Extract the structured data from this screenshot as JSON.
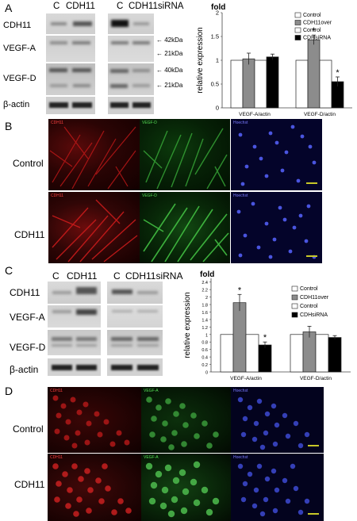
{
  "panels": {
    "a": {
      "letter": "A",
      "col_labels": [
        "C",
        "CDH11",
        "C",
        "CDH11siRNA"
      ],
      "row_labels": [
        "CDH11",
        "VEGF-A",
        "VEGF-D",
        "β-actin"
      ],
      "markers": [
        "42kDa",
        "21kDa",
        "40kDa",
        "21kDa"
      ]
    },
    "b": {
      "letter": "B",
      "row_labels": [
        "Control",
        "CDH11"
      ],
      "channel_labels": [
        "CDH11",
        "VEGF-D",
        "Hoechst"
      ]
    },
    "c": {
      "letter": "C",
      "col_labels": [
        "C",
        "CDH11",
        "C",
        "CDH11siRNA"
      ],
      "row_labels": [
        "CDH11",
        "VEGF-A",
        "VEGF-D",
        "β-actin"
      ]
    },
    "d": {
      "letter": "D",
      "row_labels": [
        "Control",
        "CDH11"
      ],
      "channel_labels": [
        "CDH11",
        "VEGF-A",
        "Hoechst"
      ]
    }
  },
  "chart_data": [
    {
      "type": "bar",
      "panel": "A",
      "title": "fold",
      "ylabel": "relative expression",
      "ylim": [
        0,
        2
      ],
      "yticks": [
        0,
        0.5,
        1,
        1.5,
        2
      ],
      "categories": [
        "VEGF-A/actin",
        "VEGF-D/actin"
      ],
      "legend": [
        "Control",
        "CDH11over",
        "Control",
        "CDHsiRNA"
      ],
      "legend_position": "top-right",
      "series": [
        {
          "name": "Control",
          "color": "#ffffff",
          "values": [
            1.0,
            1.0
          ],
          "errors": [
            0,
            0
          ]
        },
        {
          "name": "CDH11over",
          "color": "#8c8c8c",
          "values": [
            1.03,
            1.43
          ],
          "errors": [
            0.12,
            0.1
          ]
        },
        {
          "name": "Control",
          "color": "#ffffff",
          "values": [
            1.0,
            1.0
          ],
          "errors": [
            0,
            0
          ]
        },
        {
          "name": "CDHsiRNA",
          "color": "#000000",
          "values": [
            1.07,
            0.55
          ],
          "errors": [
            0.06,
            0.1
          ]
        }
      ],
      "significance": [
        {
          "category": "VEGF-D/actin",
          "series": "CDH11over",
          "mark": "*"
        },
        {
          "category": "VEGF-D/actin",
          "series": "CDHsiRNA",
          "mark": "*"
        }
      ]
    },
    {
      "type": "bar",
      "panel": "C",
      "title": "fold",
      "ylabel": "relative expression",
      "ylim": [
        0,
        2.5
      ],
      "yticks": [
        0,
        0.2,
        0.4,
        0.6,
        0.8,
        1,
        1.2,
        1.4,
        1.6,
        1.8,
        2,
        2.2,
        2.4
      ],
      "tick_labels": [
        "0",
        "0.2",
        "0.4",
        "0.6",
        "0.8",
        "1",
        "1.2",
        "1.4",
        "1.6",
        "1.8",
        "2",
        "2.2",
        "2.4"
      ],
      "categories": [
        "VEGF-A/actin",
        "VEGF-D/actin"
      ],
      "legend": [
        "Control",
        "CDH11over",
        "Control",
        "CDHsiRNA"
      ],
      "legend_position": "top-right",
      "series": [
        {
          "name": "Control",
          "color": "#ffffff",
          "values": [
            1.0,
            1.0
          ],
          "errors": [
            0,
            0
          ]
        },
        {
          "name": "CDH11over",
          "color": "#8c8c8c",
          "values": [
            1.85,
            1.07
          ],
          "errors": [
            0.22,
            0.15
          ]
        },
        {
          "name": "Control",
          "color": "#ffffff",
          "values": [
            1.0,
            1.0
          ],
          "errors": [
            0,
            0
          ]
        },
        {
          "name": "CDHsiRNA",
          "color": "#000000",
          "values": [
            0.72,
            0.92
          ],
          "errors": [
            0.08,
            0.05
          ]
        }
      ],
      "significance": [
        {
          "category": "VEGF-A/actin",
          "series": "CDH11over",
          "mark": "*"
        },
        {
          "category": "VEGF-A/actin",
          "series": "CDHsiRNA",
          "mark": "*"
        }
      ]
    }
  ]
}
